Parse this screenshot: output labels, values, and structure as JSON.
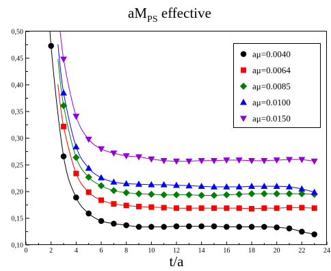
{
  "chart_data": {
    "type": "line",
    "title": {
      "main": "aM",
      "subscript": "PS",
      "suffix": " effective"
    },
    "xlabel": "t/a",
    "ylabel": "",
    "xlim": [
      0,
      24
    ],
    "ylim": [
      0.1,
      0.5
    ],
    "xticks": [
      0,
      2,
      4,
      6,
      8,
      10,
      12,
      14,
      16,
      18,
      20,
      22,
      24
    ],
    "yticks": [
      "0,10",
      "0,15",
      "0,20",
      "0,25",
      "0,30",
      "0,35",
      "0,40",
      "0,45",
      "0,50"
    ],
    "grid": false,
    "legend_position": "top-right",
    "series": [
      {
        "name": "aμ=0.0040",
        "color": "#000000",
        "marker": "circle",
        "x": [
          2,
          3,
          4,
          5,
          6,
          7,
          8,
          9,
          10,
          11,
          12,
          13,
          14,
          15,
          16,
          17,
          18,
          19,
          20,
          21,
          22,
          23
        ],
        "y": [
          0.473,
          0.266,
          0.189,
          0.159,
          0.145,
          0.14,
          0.137,
          0.134,
          0.134,
          0.134,
          0.135,
          0.135,
          0.135,
          0.135,
          0.134,
          0.134,
          0.134,
          0.134,
          0.133,
          0.131,
          0.125,
          0.12
        ]
      },
      {
        "name": "aμ=0.0064",
        "color": "#ff0000",
        "marker": "square",
        "x": [
          3,
          4,
          5,
          6,
          7,
          8,
          9,
          10,
          11,
          12,
          13,
          14,
          15,
          16,
          17,
          18,
          19,
          20,
          21,
          22,
          23
        ],
        "y": [
          0.322,
          0.234,
          0.199,
          0.184,
          0.177,
          0.174,
          0.172,
          0.171,
          0.17,
          0.169,
          0.169,
          0.169,
          0.169,
          0.169,
          0.169,
          0.168,
          0.169,
          0.169,
          0.17,
          0.17,
          0.169
        ]
      },
      {
        "name": "aμ=0.0085",
        "color": "#008000",
        "marker": "diamond",
        "x": [
          3,
          4,
          5,
          6,
          7,
          8,
          9,
          10,
          11,
          12,
          13,
          14,
          15,
          16,
          17,
          18,
          19,
          20,
          21,
          22,
          23
        ],
        "y": [
          0.361,
          0.264,
          0.227,
          0.211,
          0.202,
          0.198,
          0.196,
          0.195,
          0.194,
          0.194,
          0.194,
          0.193,
          0.193,
          0.194,
          0.195,
          0.196,
          0.196,
          0.196,
          0.196,
          0.196,
          0.195
        ]
      },
      {
        "name": "aμ=0.0100",
        "color": "#0000ff",
        "marker": "triangle-up",
        "x": [
          3,
          4,
          5,
          6,
          7,
          8,
          9,
          10,
          11,
          12,
          13,
          14,
          15,
          16,
          17,
          18,
          19,
          20,
          21,
          22,
          23
        ],
        "y": [
          0.385,
          0.284,
          0.244,
          0.226,
          0.218,
          0.215,
          0.214,
          0.213,
          0.213,
          0.212,
          0.211,
          0.21,
          0.209,
          0.209,
          0.209,
          0.21,
          0.21,
          0.21,
          0.209,
          0.205,
          0.199
        ]
      },
      {
        "name": "aμ=0.0150",
        "color": "#9400d3",
        "marker": "triangle-down",
        "x": [
          3,
          4,
          5,
          6,
          7,
          8,
          9,
          10,
          11,
          12,
          13,
          14,
          15,
          16,
          17,
          18,
          19,
          20,
          21,
          22,
          23
        ],
        "y": [
          0.448,
          0.341,
          0.298,
          0.28,
          0.272,
          0.267,
          0.265,
          0.261,
          0.258,
          0.257,
          0.257,
          0.258,
          0.258,
          0.259,
          0.259,
          0.258,
          0.258,
          0.259,
          0.26,
          0.26,
          0.257
        ]
      }
    ]
  }
}
